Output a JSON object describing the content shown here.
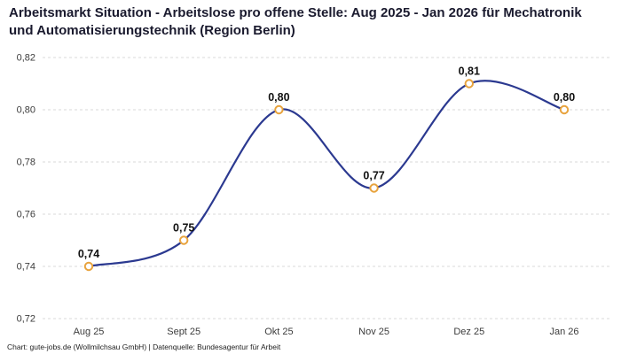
{
  "footer": "Chart: gute-jobs.de (Wollmilchsau GmbH) | Datenquelle: Bundesagentur für Arbeit",
  "chart_data": {
    "type": "line",
    "title": "Arbeitsmarkt Situation - Arbeitslose pro offene Stelle: Aug 2025 - Jan 2026 für Mechatronik und Automatisierungstechnik (Region Berlin)",
    "categories": [
      "Aug 25",
      "Sept 25",
      "Okt 25",
      "Nov 25",
      "Dez 25",
      "Jan 26"
    ],
    "values": [
      0.74,
      0.75,
      0.8,
      0.77,
      0.81,
      0.8
    ],
    "point_labels": [
      "0,74",
      "0,75",
      "0,80",
      "0,77",
      "0,81",
      "0,80"
    ],
    "y_ticks": [
      0.72,
      0.74,
      0.76,
      0.78,
      0.8,
      0.82
    ],
    "y_tick_labels": [
      "0,72",
      "0,74",
      "0,76",
      "0,78",
      "0,80",
      "0,82"
    ],
    "ylim": [
      0.72,
      0.82
    ],
    "xlabel": "",
    "ylabel": "",
    "grid": "horizontal-dashed",
    "legend": "none",
    "curve": "smooth",
    "colors": {
      "line": "#2b3990",
      "marker_fill": "#ffffff",
      "marker_stroke": "#e8a33d",
      "grid": "#d8d8d8",
      "axis_text": "#3c3c3c",
      "label_text": "#111111",
      "title_text": "#1a1a2e"
    }
  }
}
